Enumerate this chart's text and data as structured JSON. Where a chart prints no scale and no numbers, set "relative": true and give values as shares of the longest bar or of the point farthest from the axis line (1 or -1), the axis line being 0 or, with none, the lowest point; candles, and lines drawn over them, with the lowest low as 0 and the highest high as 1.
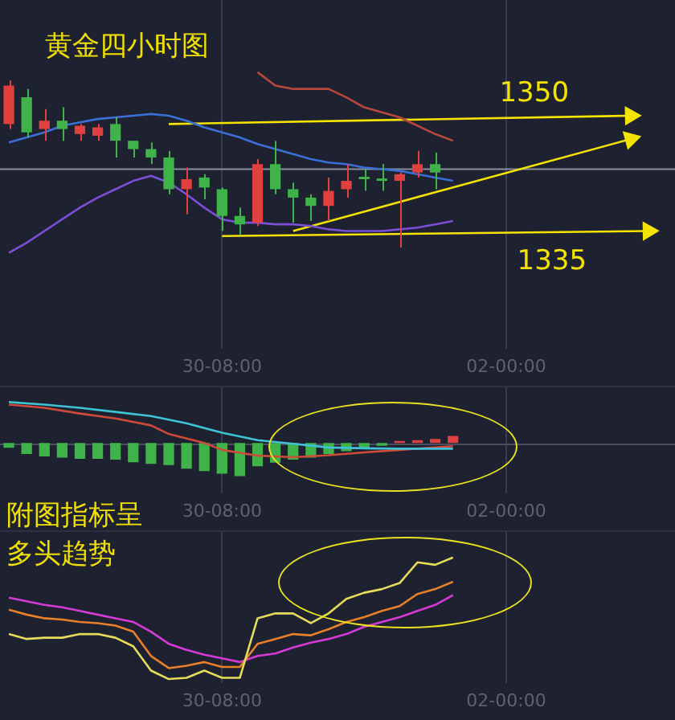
{
  "chart_data": [
    {
      "type": "candlestick",
      "title": "黄金四小时图",
      "relative": true,
      "grid": "x",
      "tick_labels": "x",
      "categories": [
        null,
        null,
        null,
        null,
        null,
        null,
        null,
        null,
        null,
        null,
        null,
        null,
        "30-08:00",
        null,
        null,
        null,
        null,
        null,
        null,
        null,
        null,
        null,
        null,
        null,
        null,
        null,
        null,
        null,
        "02-00:00",
        null,
        null,
        null,
        null,
        null,
        null,
        null,
        null,
        null
      ],
      "ohlc": [
        [
          0.74,
          1,
          0.71,
          0.97
        ],
        [
          0.9,
          0.95,
          0.66,
          0.69
        ],
        [
          0.71,
          0.83,
          0.64,
          0.76
        ],
        [
          0.76,
          0.84,
          0.64,
          0.71
        ],
        [
          0.68,
          0.74,
          0.64,
          0.73
        ],
        [
          0.67,
          0.74,
          0.64,
          0.72
        ],
        [
          0.74,
          0.78,
          0.54,
          0.64
        ],
        [
          0.64,
          0.64,
          0.54,
          0.59
        ],
        [
          0.59,
          0.63,
          0.5,
          0.54
        ],
        [
          0.54,
          0.58,
          0.32,
          0.35
        ],
        [
          0.35,
          0.48,
          0.2,
          0.41
        ],
        [
          0.42,
          0.44,
          0.29,
          0.36
        ],
        [
          0.35,
          0.36,
          0.1,
          0.19
        ],
        [
          0.19,
          0.24,
          0.08,
          0.14
        ],
        [
          0.15,
          0.53,
          0.13,
          0.5
        ],
        [
          0.5,
          0.64,
          0.32,
          0.35
        ],
        [
          0.35,
          0.39,
          0.15,
          0.3
        ],
        [
          0.3,
          0.32,
          0.16,
          0.25
        ],
        [
          0.25,
          0.42,
          0.16,
          0.34
        ],
        [
          0.35,
          0.5,
          0.3,
          0.4
        ],
        [
          0.42,
          0.47,
          0.34,
          0.41
        ],
        [
          0.41,
          0.5,
          0.34,
          0.4
        ],
        [
          0.4,
          0.45,
          0,
          0.44
        ],
        [
          0.45,
          0.58,
          0.42,
          0.5
        ],
        [
          0.5,
          0.57,
          0.35,
          0.45
        ],
        null,
        null,
        null,
        null,
        null,
        null,
        null,
        null,
        null,
        null,
        null,
        null,
        null
      ],
      "colors": [
        "#e04040",
        "#3fb34a",
        "#e04040",
        "#3fb34a",
        "#e04040",
        "#e04040",
        "#3fb34a",
        "#3fb34a",
        "#3fb34a",
        "#3fb34a",
        "#e04040",
        "#3fb34a",
        "#3fb34a",
        "#3fb34a",
        "#e04040",
        "#3fb34a",
        "#3fb34a",
        "#3fb34a",
        "#e04040",
        "#e04040",
        "#3fb34a",
        "#3fb34a",
        "#e04040",
        "#e04040",
        "#3fb34a",
        null,
        null,
        null,
        null,
        null,
        null,
        null,
        null,
        null,
        null,
        null,
        null,
        null
      ],
      "series": [
        {
          "type": "line",
          "color": "#b8473c",
          "values": [
            null,
            null,
            null,
            null,
            null,
            null,
            null,
            null,
            null,
            null,
            null,
            null,
            null,
            null,
            1.05,
            0.97,
            0.95,
            0.95,
            0.95,
            0.9,
            0.84,
            0.81,
            0.78,
            0.73,
            0.68,
            0.64,
            null,
            null,
            null,
            null,
            null,
            null,
            null,
            null,
            null,
            null,
            null,
            null
          ]
        },
        {
          "type": "line",
          "color": "#3a6fd8",
          "values": [
            0.63,
            0.66,
            0.69,
            0.73,
            0.75,
            0.77,
            0.78,
            0.79,
            0.8,
            0.79,
            0.76,
            0.72,
            0.69,
            0.66,
            0.62,
            0.59,
            0.56,
            0.53,
            0.51,
            0.5,
            0.48,
            0.47,
            0.46,
            0.44,
            0.42,
            0.4,
            null,
            null,
            null,
            null,
            null,
            null,
            null,
            null,
            null,
            null,
            null,
            null
          ]
        },
        {
          "type": "line",
          "color": "#7b4fd6",
          "values": [
            -0.03,
            0.03,
            0.1,
            0.17,
            0.24,
            0.3,
            0.35,
            0.4,
            0.43,
            0.39,
            0.32,
            0.24,
            0.17,
            0.15,
            0.15,
            0.14,
            0.14,
            0.13,
            0.11,
            0.1,
            0.1,
            0.1,
            0.11,
            0.12,
            0.14,
            0.16,
            null,
            null,
            null,
            null,
            null,
            null,
            null,
            null,
            null,
            null,
            null,
            null
          ]
        },
        {
          "type": "line",
          "name": "1350",
          "color": "#f5e400",
          "values": [
            null,
            null,
            null,
            null,
            null,
            null,
            null,
            null,
            null,
            0.74,
            null,
            null,
            null,
            null,
            null,
            null,
            null,
            null,
            null,
            null,
            null,
            null,
            null,
            null,
            null,
            null,
            null,
            null,
            null,
            null,
            null,
            null,
            null,
            null,
            null,
            0.79,
            null,
            null
          ]
        },
        {
          "type": "line",
          "color": "#f5e400",
          "values": [
            null,
            null,
            null,
            null,
            null,
            null,
            null,
            null,
            null,
            null,
            null,
            null,
            null,
            null,
            null,
            null,
            0.1,
            null,
            null,
            null,
            null,
            null,
            null,
            null,
            null,
            null,
            null,
            null,
            null,
            null,
            null,
            null,
            null,
            null,
            null,
            0.65,
            null,
            null
          ]
        },
        {
          "type": "line",
          "name": "1335",
          "color": "#f5e400",
          "values": [
            null,
            null,
            null,
            null,
            null,
            null,
            null,
            null,
            null,
            null,
            null,
            null,
            0.07,
            null,
            null,
            null,
            null,
            null,
            null,
            null,
            null,
            null,
            null,
            null,
            null,
            null,
            null,
            null,
            null,
            null,
            null,
            null,
            null,
            null,
            null,
            null,
            0.1,
            null
          ]
        }
      ],
      "ref_lines": [
        {
          "axis": "y",
          "value": 0.47,
          "color": "#8a8f9c"
        }
      ]
    },
    {
      "type": "bar",
      "relative": true,
      "grid": "x",
      "tick_labels": "x",
      "annotations": [
        "附图指标呈"
      ],
      "categories": [
        null,
        null,
        null,
        null,
        null,
        null,
        null,
        null,
        null,
        null,
        null,
        null,
        "30-08:00",
        null,
        null,
        null,
        null,
        null,
        null,
        null,
        null,
        null,
        null,
        null,
        null,
        null,
        null,
        null,
        "02-00:00",
        null,
        null,
        null,
        null,
        null,
        null,
        null,
        null,
        null
      ],
      "series": [
        {
          "type": "bar",
          "colors": [
            "#3fb34a",
            "#3fb34a",
            "#3fb34a",
            "#3fb34a",
            "#3fb34a",
            "#3fb34a",
            "#3fb34a",
            "#3fb34a",
            "#3fb34a",
            "#3fb34a",
            "#3fb34a",
            "#3fb34a",
            "#3fb34a",
            "#3fb34a",
            "#3fb34a",
            "#3fb34a",
            "#3fb34a",
            "#3fb34a",
            "#3fb34a",
            "#3fb34a",
            "#3fb34a",
            "#3fb34a",
            "#e04040",
            "#e04040",
            "#e04040",
            "#e04040",
            null,
            null,
            null,
            null,
            null,
            null,
            null,
            null,
            null,
            null,
            null,
            null
          ],
          "values": [
            -0.12,
            -0.27,
            -0.33,
            -0.36,
            -0.39,
            -0.39,
            -0.41,
            -0.47,
            -0.51,
            -0.54,
            -0.63,
            -0.69,
            -0.75,
            -0.81,
            -0.57,
            -0.48,
            -0.41,
            -0.36,
            -0.27,
            -0.2,
            -0.14,
            -0.07,
            0.05,
            0.07,
            0.1,
            0.17,
            null,
            null,
            null,
            null,
            null,
            null,
            null,
            null,
            null,
            null,
            null,
            null
          ]
        },
        {
          "type": "line",
          "color": "#3fc1d6",
          "values": [
            1.0,
            null,
            0.94,
            null,
            0.86,
            null,
            0.76,
            null,
            0.66,
            null,
            0.48,
            null,
            0.25,
            null,
            0.07,
            null,
            -0.02,
            null,
            -0.11,
            null,
            -0.13,
            null,
            -0.14,
            null,
            null,
            -0.14,
            null,
            null,
            null,
            null,
            null,
            null,
            null,
            null,
            null,
            null,
            null,
            null
          ]
        },
        {
          "type": "line",
          "color": "#d04a3a",
          "values": [
            0.94,
            null,
            0.86,
            null,
            0.72,
            null,
            0.6,
            null,
            0.43,
            0.22,
            null,
            0,
            -0.17,
            null,
            -0.31,
            null,
            -0.35,
            null,
            -0.3,
            null,
            -0.23,
            null,
            -0.17,
            null,
            null,
            -0.08,
            null,
            null,
            null,
            null,
            null,
            null,
            null,
            null,
            null,
            null,
            null,
            null
          ]
        }
      ]
    },
    {
      "type": "line",
      "relative": true,
      "grid": "x",
      "tick_labels": "x",
      "annotations": [
        "多头趋势"
      ],
      "categories": [
        null,
        null,
        null,
        null,
        null,
        null,
        null,
        null,
        null,
        null,
        null,
        null,
        "30-08:00",
        null,
        null,
        null,
        null,
        null,
        null,
        null,
        null,
        null,
        null,
        null,
        null,
        null,
        null,
        null,
        "02-00:00",
        null,
        null,
        null,
        null,
        null,
        null,
        null,
        null,
        null
      ],
      "series": [
        {
          "color": "#e6dc5a",
          "values": [
            0.37,
            0.33,
            0.34,
            0.34,
            0.37,
            0.37,
            0.34,
            0.27,
            0.07,
            0,
            0.01,
            0.07,
            0.01,
            0.01,
            0.5,
            0.54,
            0.54,
            0.46,
            0.54,
            0.66,
            0.71,
            0.74,
            0.79,
            0.96,
            0.94,
            1,
            null,
            null,
            null,
            null,
            null,
            null,
            null,
            null,
            null,
            null,
            null,
            null
          ]
        },
        {
          "color": "#e8802a",
          "values": [
            0.57,
            0.53,
            0.5,
            0.49,
            0.47,
            0.46,
            0.44,
            0.39,
            0.19,
            0.09,
            0.11,
            0.14,
            0.1,
            0.1,
            0.29,
            0.33,
            0.37,
            0.36,
            0.41,
            0.47,
            0.51,
            0.56,
            0.6,
            0.7,
            0.74,
            0.8,
            null,
            null,
            null,
            null,
            null,
            null,
            null,
            null,
            null,
            null,
            null,
            null
          ]
        },
        {
          "color": "#d63ad6",
          "values": [
            0.67,
            0.64,
            0.61,
            0.59,
            0.56,
            0.53,
            0.5,
            0.47,
            0.39,
            0.29,
            0.24,
            0.2,
            0.17,
            0.14,
            0.19,
            0.21,
            0.26,
            0.3,
            0.33,
            0.37,
            0.43,
            0.47,
            0.51,
            0.56,
            0.61,
            0.69,
            null,
            null,
            null,
            null,
            null,
            null,
            null,
            null,
            null,
            null,
            null,
            null
          ]
        }
      ]
    }
  ]
}
